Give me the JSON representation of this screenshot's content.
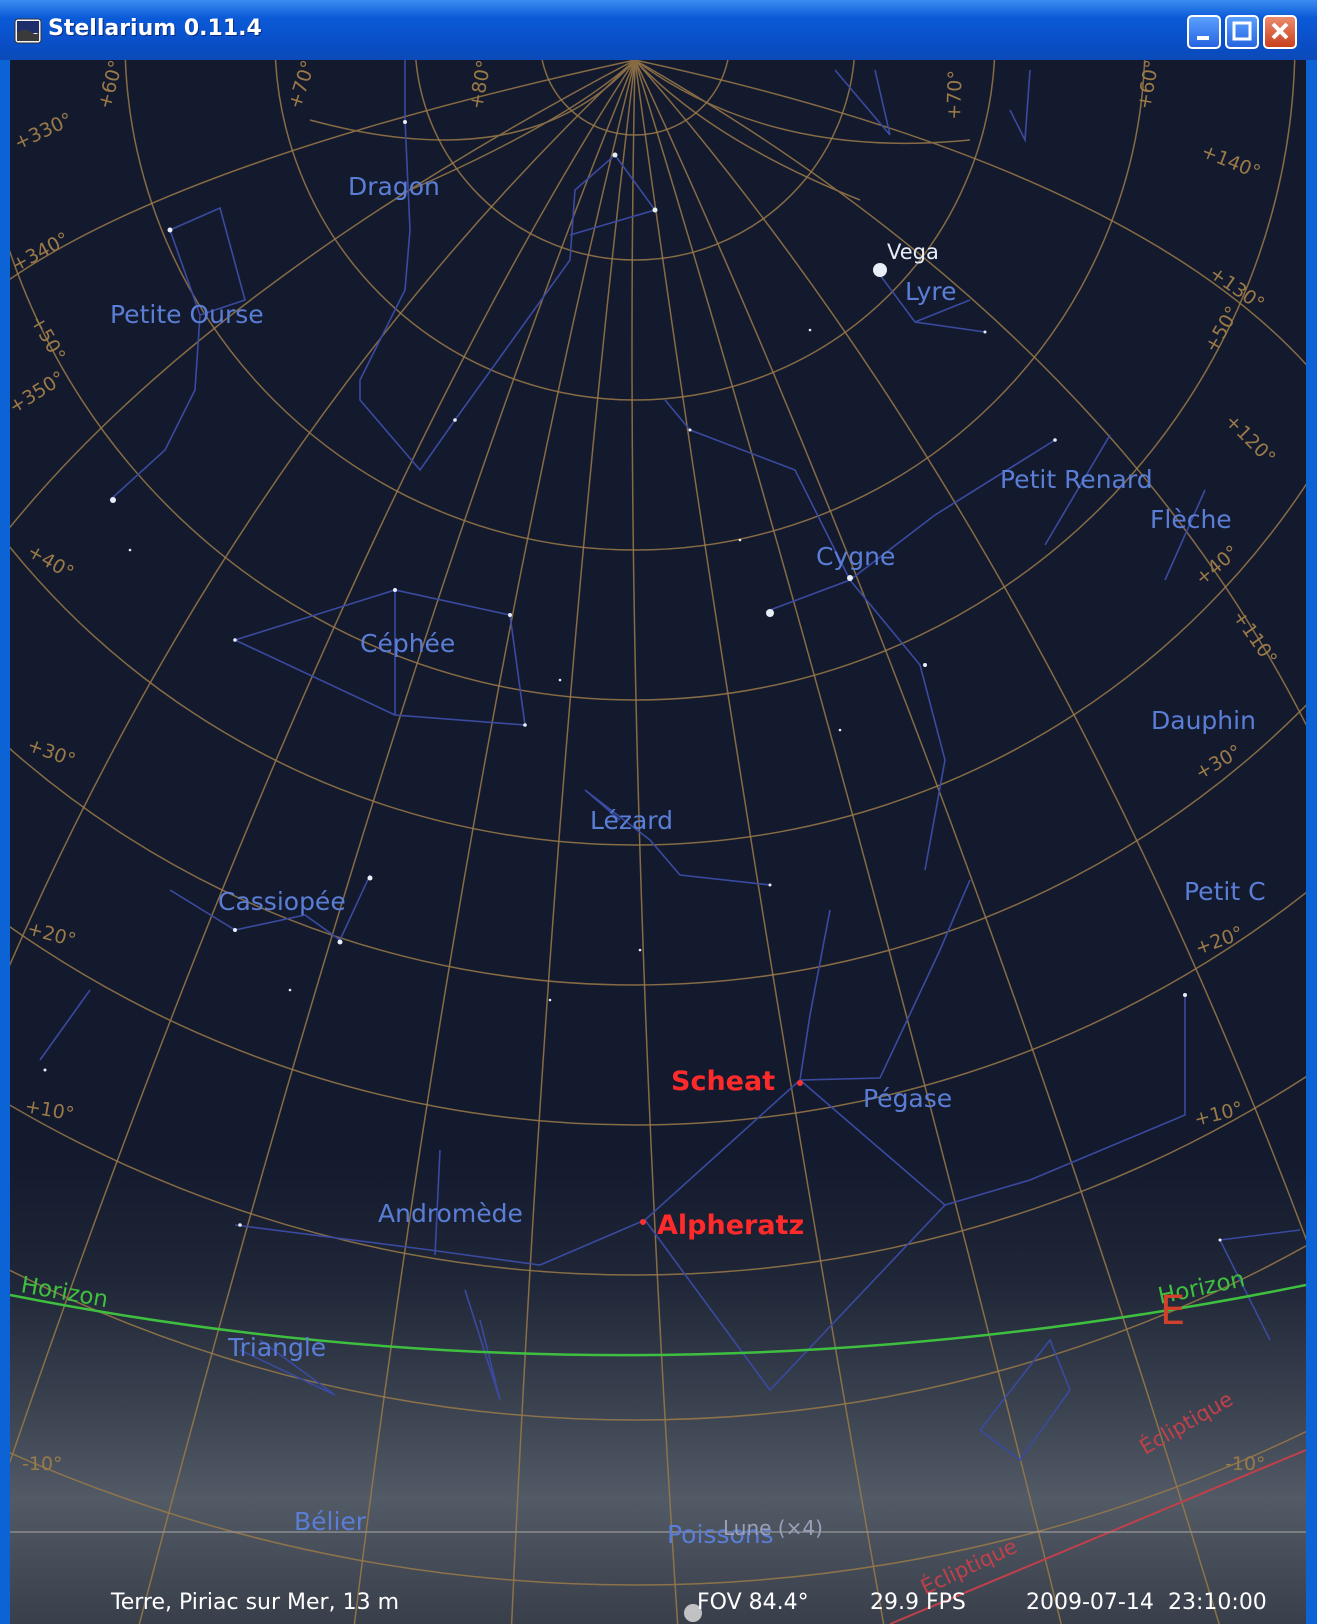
{
  "window": {
    "title": "Stellarium 0.11.4",
    "icon": "stellarium-app-icon",
    "controls": [
      "minimize-icon",
      "maximize-icon",
      "close-icon"
    ]
  },
  "sky": {
    "constellations": [
      "Dragon",
      "Petite Ourse",
      "Lyre",
      "Petit Renard",
      "Flèche",
      "Cygne",
      "Céphée",
      "Dauphin",
      "Lézard",
      "Petit C",
      "Cassiopée",
      "Pégase",
      "Andromède",
      "Triangle",
      "Bélier",
      "Poissons"
    ],
    "stars": {
      "vega": "Vega",
      "scheat": "Scheat",
      "alpheratz": "Alpheratz"
    },
    "horizon": "Horizon",
    "ecliptic": "Écliptique",
    "cardinal_east": "E",
    "moon": "Lune (×4)",
    "azimuth_labels": [
      "+330°",
      "+340°",
      "+350°",
      "+140°",
      "+130°",
      "+120°",
      "+110°"
    ],
    "altitude_labels": [
      "+60°",
      "+70°",
      "+80°",
      "+50°",
      "+40°",
      "+30°",
      "+20°",
      "+10°",
      "-10°"
    ],
    "colors": {
      "grid": "#9a7a48",
      "constellation_lines": "#3a4aa0",
      "constellation_labels": "#5a7ed6",
      "horizon": "#3fbf3f",
      "ecliptic": "#c0404a",
      "star_labels": "#ff2a2a",
      "cardinal": "#d0402a"
    }
  },
  "status": {
    "location": "Terre, Piriac sur Mer, 13 m",
    "fov": "FOV 84.4°",
    "fps": "29.9 FPS",
    "date": "2009-07-14",
    "time": "23:10:00"
  }
}
